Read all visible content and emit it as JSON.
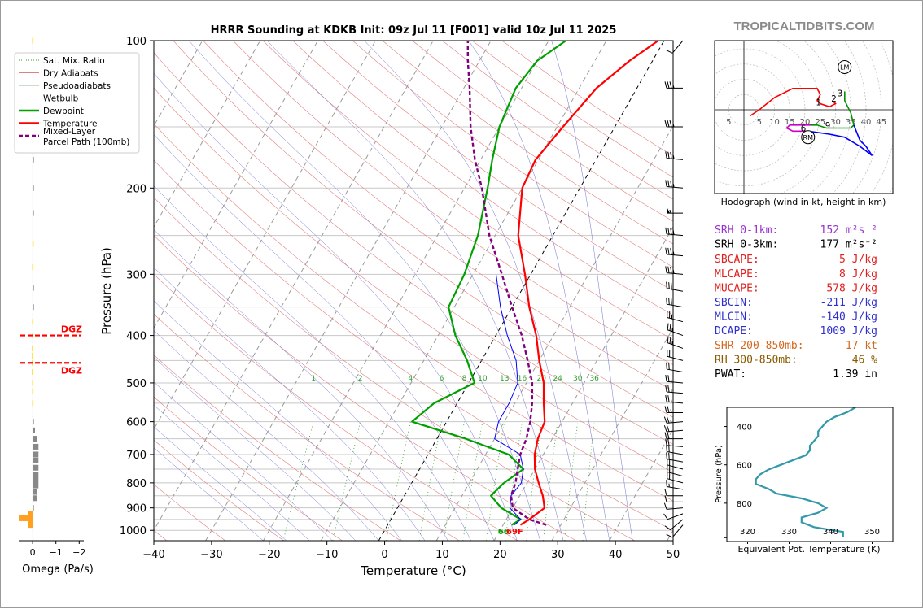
{
  "title": "HRRR Sounding at KDKB Init: 09z Jul 11 [F001] valid 10z Jul 11 2025",
  "watermark": "TROPICALTIDBITS.COM",
  "chart_data": [
    {
      "type": "line",
      "name": "skew-t",
      "xlabel": "Temperature (°C)",
      "ylabel": "Pressure (hPa)",
      "xlim": [
        -40,
        50
      ],
      "ylim": [
        1050,
        100
      ],
      "x_ticks": [
        "−40",
        "−30",
        "−20",
        "−10",
        "0",
        "10",
        "20",
        "30",
        "40",
        "50"
      ],
      "y_ticks": [
        "100",
        "200",
        "300",
        "400",
        "500",
        "600",
        "700",
        "800",
        "900",
        "1000"
      ],
      "legend": {
        "placement": "left",
        "entries": [
          {
            "label": "Sat. Mix. Ratio",
            "color": "#2ca02c",
            "style": "dotted"
          },
          {
            "label": "Dry Adiabats",
            "color": "#d9534f",
            "style": "thin"
          },
          {
            "label": "Pseudoadiabats",
            "color": "#6fa86f",
            "style": "thin"
          },
          {
            "label": "Wetbulb",
            "color": "#0000ff",
            "style": "solid"
          },
          {
            "label": "Dewpoint",
            "color": "#00a000",
            "style": "thick"
          },
          {
            "label": "Temperature",
            "color": "#ff0000",
            "style": "thick"
          },
          {
            "label": "Mixed-Layer Parcel Path (100mb)",
            "color": "#800080",
            "style": "dashed"
          }
        ]
      },
      "mixing_ratio_labels": [
        "1",
        "2",
        "4",
        "6",
        "8",
        "10",
        "13",
        "16",
        "20",
        "24",
        "30",
        "36"
      ],
      "surface_label": "69F",
      "surface_dewpoint_label": "66",
      "series": [
        {
          "name": "Temperature",
          "color": "#ff0000",
          "points": [
            [
              23,
              975
            ],
            [
              24,
              950
            ],
            [
              25.5,
              900
            ],
            [
              24,
              850
            ],
            [
              22,
              800
            ],
            [
              20,
              750
            ],
            [
              18.5,
              700
            ],
            [
              17.5,
              650
            ],
            [
              17,
              600
            ],
            [
              15,
              550
            ],
            [
              13,
              500
            ],
            [
              10,
              450
            ],
            [
              7,
              400
            ],
            [
              3,
              350
            ],
            [
              -1,
              300
            ],
            [
              -6,
              250
            ],
            [
              -10,
              200
            ],
            [
              -10.5,
              175
            ],
            [
              -9,
              150
            ],
            [
              -7,
              125
            ],
            [
              -4,
              110
            ],
            [
              -1,
              100
            ]
          ]
        },
        {
          "name": "Dewpoint",
          "color": "#00a000",
          "points": [
            [
              21.5,
              975
            ],
            [
              22.5,
              950
            ],
            [
              18,
              900
            ],
            [
              15,
              850
            ],
            [
              16,
              800
            ],
            [
              18,
              750
            ],
            [
              14,
              700
            ],
            [
              5,
              650
            ],
            [
              -6,
              600
            ],
            [
              -4,
              550
            ],
            [
              1,
              500
            ],
            [
              -2.5,
              450
            ],
            [
              -7,
              400
            ],
            [
              -11,
              350
            ],
            [
              -11.5,
              300
            ],
            [
              -13,
              250
            ],
            [
              -16,
              200
            ],
            [
              -18,
              175
            ],
            [
              -20,
              150
            ],
            [
              -21,
              125
            ],
            [
              -20,
              110
            ],
            [
              -17,
              100
            ]
          ]
        },
        {
          "name": "Wetbulb",
          "color": "#0000ff",
          "points": [
            [
              22,
              975
            ],
            [
              22.5,
              950
            ],
            [
              19.5,
              900
            ],
            [
              18.5,
              850
            ],
            [
              19,
              800
            ],
            [
              18,
              750
            ],
            [
              16,
              700
            ],
            [
              10,
              650
            ],
            [
              9,
              600
            ],
            [
              9,
              550
            ],
            [
              8.5,
              500
            ],
            [
              6,
              450
            ],
            [
              2,
              400
            ],
            [
              -2,
              350
            ],
            [
              -6,
              300
            ]
          ]
        },
        {
          "name": "Mixed-Layer Parcel Path (100mb)",
          "color": "#800080",
          "points": [
            [
              27.5,
              975
            ],
            [
              24,
              950
            ],
            [
              20,
              900
            ],
            [
              18.5,
              850
            ],
            [
              18,
              800
            ],
            [
              17,
              750
            ],
            [
              16,
              700
            ],
            [
              15.5,
              650
            ],
            [
              14.5,
              600
            ],
            [
              13,
              550
            ],
            [
              11,
              500
            ],
            [
              8,
              450
            ],
            [
              4.5,
              400
            ],
            [
              0,
              350
            ],
            [
              -5,
              300
            ],
            [
              -11,
              250
            ],
            [
              -17,
              200
            ],
            [
              -21,
              175
            ],
            [
              -25,
              150
            ],
            [
              -29,
              125
            ],
            [
              -32,
              110
            ],
            [
              -34,
              100
            ]
          ]
        }
      ]
    },
    {
      "type": "bar",
      "name": "omega",
      "xlabel": "Omega (Pa/s)",
      "x_ticks": [
        "0",
        "−1",
        "−2"
      ],
      "xlim": [
        0.6,
        -2.2
      ],
      "dgz_label": "DGZ",
      "dgz_levels": [
        400,
        455
      ],
      "values": [
        {
          "p": 975,
          "w": 0.2
        },
        {
          "p": 960,
          "w": 0.2
        },
        {
          "p": 945,
          "w": 0.6
        },
        {
          "p": 925,
          "w": 0.2
        },
        {
          "p": 900,
          "w": 0.0
        },
        {
          "p": 860,
          "w": -0.2
        },
        {
          "p": 835,
          "w": -0.2
        },
        {
          "p": 810,
          "w": -0.25
        },
        {
          "p": 790,
          "w": -0.25
        },
        {
          "p": 770,
          "w": -0.25
        },
        {
          "p": 745,
          "w": -0.25
        },
        {
          "p": 720,
          "w": -0.25
        },
        {
          "p": 700,
          "w": -0.25
        },
        {
          "p": 675,
          "w": -0.25
        },
        {
          "p": 650,
          "w": -0.2
        },
        {
          "p": 625,
          "w": -0.1
        },
        {
          "p": 600,
          "w": -0.05
        },
        {
          "p": 550,
          "w": 0.02
        },
        {
          "p": 520,
          "w": 0.02
        },
        {
          "p": 500,
          "w": 0.02
        },
        {
          "p": 475,
          "w": 0.03
        },
        {
          "p": 455,
          "w": 0.03
        },
        {
          "p": 440,
          "w": 0.03
        },
        {
          "p": 425,
          "w": 0.03
        },
        {
          "p": 400,
          "w": 0.02
        },
        {
          "p": 375,
          "w": 0.02
        },
        {
          "p": 350,
          "w": -0.05
        },
        {
          "p": 320,
          "w": -0.04
        },
        {
          "p": 290,
          "w": 0.02
        },
        {
          "p": 260,
          "w": 0.01
        },
        {
          "p": 225,
          "w": -0.02
        },
        {
          "p": 200,
          "w": -0.03
        },
        {
          "p": 175,
          "w": -0.02
        },
        {
          "p": 150,
          "w": 0.01
        },
        {
          "p": 125,
          "w": 0.02
        },
        {
          "p": 100,
          "w": 0.02
        }
      ]
    },
    {
      "type": "line",
      "name": "hodograph",
      "caption": "Hodograph (wind in kt, height in km)",
      "ring_labels": [
        "5",
        "5",
        "10",
        "15",
        "20",
        "25",
        "30",
        "35",
        "40",
        "45"
      ],
      "markers": [
        "1",
        "2",
        "3",
        "6",
        "9"
      ],
      "storm_motion_labels": [
        "LM",
        "RM"
      ],
      "series": [
        {
          "name": "0-1km",
          "color": "#ff0000",
          "points": [
            [
              2,
              -2
            ],
            [
              5,
              0
            ],
            [
              10,
              4
            ],
            [
              16,
              7
            ],
            [
              24,
              7
            ],
            [
              25,
              5
            ],
            [
              24,
              3
            ],
            [
              25,
              2
            ],
            [
              28,
              1
            ],
            [
              30,
              2
            ],
            [
              29,
              3
            ]
          ]
        },
        {
          "name": "1-3km",
          "color": "#009000",
          "points": [
            [
              33,
              6
            ],
            [
              33,
              3
            ],
            [
              34,
              1
            ],
            [
              35,
              -1
            ],
            [
              36,
              -5
            ],
            [
              35,
              -6
            ],
            [
              30,
              -6
            ],
            [
              27,
              -6
            ],
            [
              24,
              -5
            ],
            [
              22,
              -5
            ]
          ]
        },
        {
          "name": "3-6km",
          "color": "#cc00cc",
          "points": [
            [
              22,
              -5
            ],
            [
              19,
              -5
            ],
            [
              15,
              -5
            ],
            [
              14,
              -6
            ],
            [
              16,
              -7
            ],
            [
              19,
              -7
            ],
            [
              21,
              -7
            ]
          ]
        },
        {
          "name": "6-9km",
          "color": "#0000ff",
          "points": [
            [
              21,
              -7
            ],
            [
              28,
              -8
            ],
            [
              33,
              -9
            ],
            [
              38,
              -12
            ],
            [
              42,
              -15
            ],
            [
              40,
              -12
            ],
            [
              38,
              -10
            ],
            [
              36,
              -5
            ]
          ]
        }
      ]
    },
    {
      "type": "line",
      "name": "theta-e",
      "xlabel": "Equivalent Pot. Temperature (K)",
      "ylabel": "Pressure (hPa)",
      "x_ticks": [
        "320",
        "330",
        "340",
        "350"
      ],
      "y_ticks": [
        "400",
        "600",
        "800"
      ],
      "xlim": [
        315,
        355
      ],
      "ylim": [
        1000,
        300
      ],
      "series": [
        {
          "name": "theta-e",
          "color": "#3399aa",
          "points": [
            [
              343,
              975
            ],
            [
              343,
              950
            ],
            [
              336,
              925
            ],
            [
              333,
              900
            ],
            [
              333,
              875
            ],
            [
              337,
              850
            ],
            [
              339,
              825
            ],
            [
              337,
              800
            ],
            [
              333,
              775
            ],
            [
              327,
              750
            ],
            [
              325,
              725
            ],
            [
              322,
              700
            ],
            [
              322,
              675
            ],
            [
              323,
              650
            ],
            [
              325,
              625
            ],
            [
              328,
              600
            ],
            [
              331,
              575
            ],
            [
              334,
              550
            ],
            [
              335,
              525
            ],
            [
              335,
              500
            ],
            [
              336,
              475
            ],
            [
              337,
              450
            ],
            [
              337,
              425
            ],
            [
              338,
              400
            ],
            [
              339,
              375
            ],
            [
              341,
              350
            ],
            [
              344,
              325
            ],
            [
              346,
              300
            ]
          ]
        }
      ]
    }
  ],
  "indices": [
    {
      "label": "SRH 0-1km:",
      "value": "152 m²s⁻²",
      "color": "#9932cc"
    },
    {
      "label": "SRH 0-3km:",
      "value": "177 m²s⁻²",
      "color": "#000000"
    },
    {
      "label": "SBCAPE:",
      "value": "5 J/kg",
      "color": "#e02020"
    },
    {
      "label": "MLCAPE:",
      "value": "8 J/kg",
      "color": "#e02020"
    },
    {
      "label": "MUCAPE:",
      "value": "578 J/kg",
      "color": "#e02020"
    },
    {
      "label": "SBCIN:",
      "value": "-211 J/kg",
      "color": "#3030cc"
    },
    {
      "label": "MLCIN:",
      "value": "-140 J/kg",
      "color": "#3030cc"
    },
    {
      "label": "DCAPE:",
      "value": "1009 J/kg",
      "color": "#3030cc"
    },
    {
      "label": "SHR 200-850mb:",
      "value": "17 kt",
      "color": "#d2691e"
    },
    {
      "label": "RH 300-850mb:",
      "value": "46 %",
      "color": "#8b5a00"
    },
    {
      "label": "PWAT:",
      "value": "1.39 in",
      "color": "#000000"
    }
  ],
  "wind_barbs": [
    {
      "p": 100,
      "spd": 10,
      "dir": 220
    },
    {
      "p": 125,
      "spd": 35,
      "dir": 270
    },
    {
      "p": 150,
      "spd": 35,
      "dir": 270
    },
    {
      "p": 175,
      "spd": 35,
      "dir": 275
    },
    {
      "p": 200,
      "spd": 35,
      "dir": 275
    },
    {
      "p": 225,
      "spd": 55,
      "dir": 270
    },
    {
      "p": 250,
      "spd": 40,
      "dir": 275
    },
    {
      "p": 275,
      "spd": 35,
      "dir": 275
    },
    {
      "p": 300,
      "spd": 35,
      "dir": 275
    },
    {
      "p": 325,
      "spd": 30,
      "dir": 280
    },
    {
      "p": 350,
      "spd": 30,
      "dir": 280
    },
    {
      "p": 375,
      "spd": 25,
      "dir": 285
    },
    {
      "p": 400,
      "spd": 25,
      "dir": 290
    },
    {
      "p": 425,
      "spd": 25,
      "dir": 290
    },
    {
      "p": 450,
      "spd": 20,
      "dir": 285
    },
    {
      "p": 475,
      "spd": 20,
      "dir": 280
    },
    {
      "p": 500,
      "spd": 25,
      "dir": 275
    },
    {
      "p": 525,
      "spd": 25,
      "dir": 275
    },
    {
      "p": 550,
      "spd": 25,
      "dir": 275
    },
    {
      "p": 575,
      "spd": 25,
      "dir": 270
    },
    {
      "p": 600,
      "spd": 25,
      "dir": 265
    },
    {
      "p": 625,
      "spd": 20,
      "dir": 265
    },
    {
      "p": 650,
      "spd": 20,
      "dir": 270
    },
    {
      "p": 675,
      "spd": 20,
      "dir": 275
    },
    {
      "p": 700,
      "spd": 20,
      "dir": 280
    },
    {
      "p": 725,
      "spd": 20,
      "dir": 280
    },
    {
      "p": 750,
      "spd": 20,
      "dir": 285
    },
    {
      "p": 775,
      "spd": 20,
      "dir": 285
    },
    {
      "p": 800,
      "spd": 20,
      "dir": 285
    },
    {
      "p": 825,
      "spd": 15,
      "dir": 280
    },
    {
      "p": 850,
      "spd": 10,
      "dir": 270
    },
    {
      "p": 875,
      "spd": 10,
      "dir": 270
    },
    {
      "p": 900,
      "spd": 10,
      "dir": 265
    },
    {
      "p": 925,
      "spd": 10,
      "dir": 250
    },
    {
      "p": 950,
      "spd": 10,
      "dir": 230
    },
    {
      "p": 975,
      "spd": 10,
      "dir": 220
    }
  ]
}
